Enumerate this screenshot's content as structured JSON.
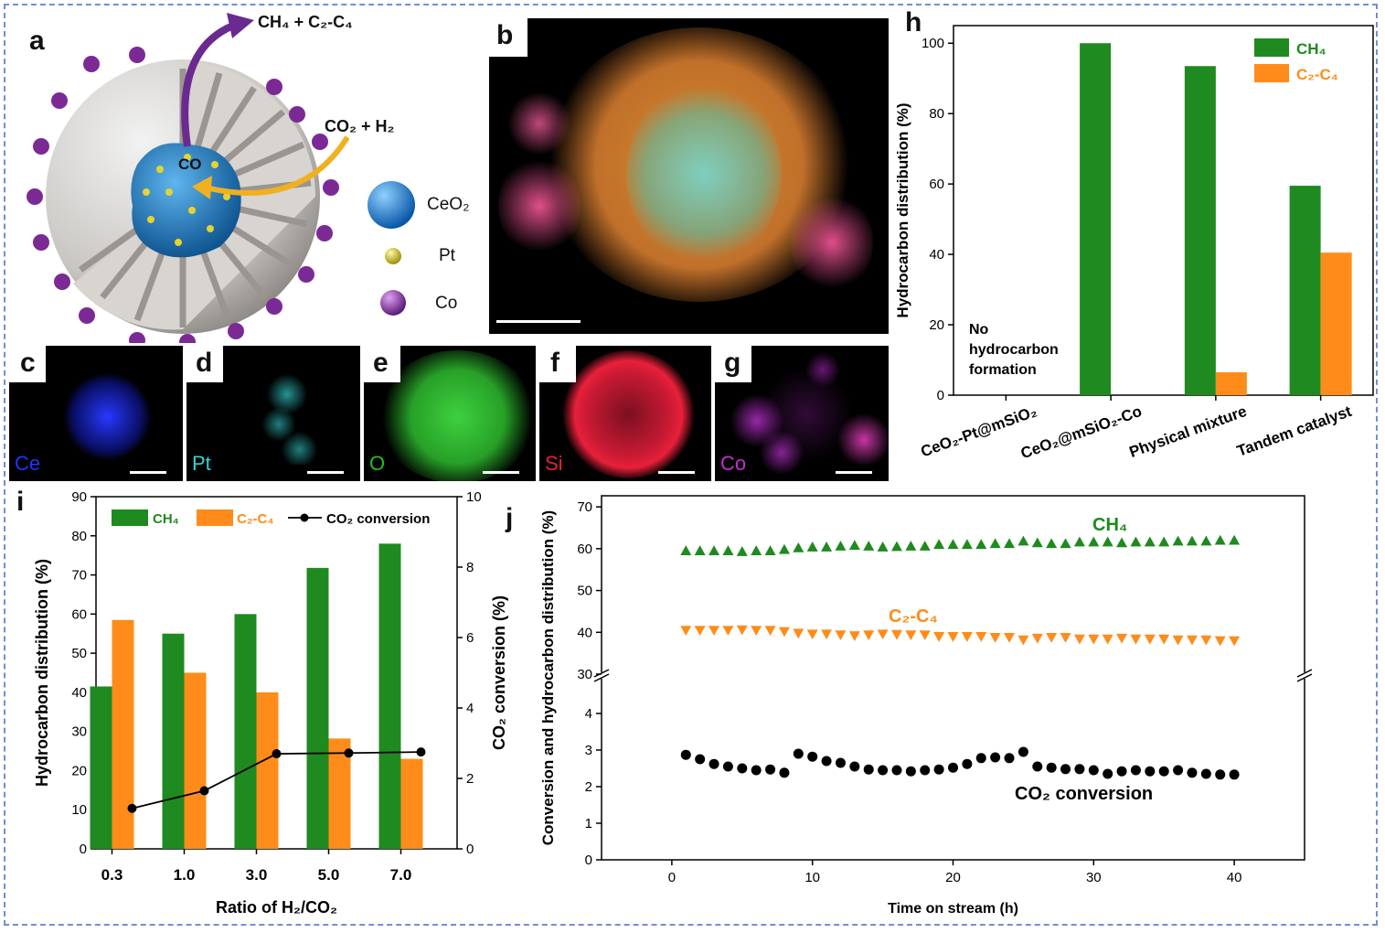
{
  "panels": {
    "a": "a",
    "b": "b",
    "c": "c",
    "d": "d",
    "e": "e",
    "f": "f",
    "g": "g",
    "h": "h",
    "i": "i",
    "j": "j"
  },
  "schematic": {
    "product_label": "CH₄ + C₂-C₄",
    "reactant_label": "CO₂ + H₂",
    "intermediate_label": "CO",
    "legend": [
      {
        "label": "CeO₂",
        "color": "#1f78c8"
      },
      {
        "label": "Pt",
        "color": "#d8c628"
      },
      {
        "label": "Co",
        "color": "#8a3aa0"
      }
    ]
  },
  "eds_maps": [
    {
      "panel": "c",
      "element": "Ce",
      "color": "#2233ff"
    },
    {
      "panel": "d",
      "element": "Pt",
      "color": "#37d2d2"
    },
    {
      "panel": "e",
      "element": "O",
      "color": "#22c022"
    },
    {
      "panel": "f",
      "element": "Si",
      "color": "#e8203a"
    },
    {
      "panel": "g",
      "element": "Co",
      "color": "#c030d0"
    }
  ],
  "colors": {
    "ch4": "#1f8a1f",
    "c2c4": "#ff8c1a",
    "conv": "#000000"
  },
  "chart_data": [
    {
      "id": "h",
      "type": "bar",
      "ylabel": "Hydrocarbon distribution (%)",
      "ylim": [
        0,
        105
      ],
      "yticks": [
        0,
        20,
        40,
        60,
        80,
        100
      ],
      "categories": [
        "CeO₂-Pt@mSiO₂",
        "CeO₂@mSiO₂-Co",
        "Physical mixture",
        "Tandem catalyst"
      ],
      "series": [
        {
          "name": "CH₄",
          "values": [
            0,
            100,
            93.5,
            59.5
          ]
        },
        {
          "name": "C₂-C₄",
          "values": [
            0,
            0,
            6.5,
            40.5
          ]
        }
      ],
      "annotation": [
        "No",
        "hydrocarbon",
        "formation"
      ],
      "legend_position": "top-right"
    },
    {
      "id": "i",
      "type": "bar",
      "xlabel": "Ratio of H₂/CO₂",
      "ylabel": "Hydrocarbon distribution (%)",
      "y2label": "CO₂ conversion (%)",
      "ylim": [
        0,
        90
      ],
      "yticks": [
        0,
        10,
        20,
        30,
        40,
        50,
        60,
        70,
        80,
        90
      ],
      "y2lim": [
        0,
        10
      ],
      "y2ticks": [
        0,
        2,
        4,
        6,
        8,
        10
      ],
      "categories": [
        "0.3",
        "1.0",
        "3.0",
        "5.0",
        "7.0"
      ],
      "series": [
        {
          "name": "CH₄",
          "values": [
            41.5,
            55,
            60,
            71.8,
            78
          ]
        },
        {
          "name": "C₂-C₄",
          "values": [
            58.5,
            45,
            40,
            28.2,
            23
          ]
        },
        {
          "name": "CO₂ conversion",
          "type": "line",
          "axis": "right",
          "x": [
            0.5,
            1.5,
            2.5,
            3.5,
            4.5
          ],
          "values": [
            1.15,
            1.65,
            2.7,
            2.72,
            2.75
          ]
        }
      ],
      "legend_position": "top"
    },
    {
      "id": "j",
      "type": "scatter",
      "xlabel": "Time on stream (h)",
      "ylabel": "Conversion and hydrocarbon distribution (%)",
      "xlim": [
        -5,
        45
      ],
      "xticks": [
        0,
        10,
        20,
        30,
        40
      ],
      "ylim_lower": [
        0,
        5
      ],
      "yticks_lower": [
        0,
        1,
        2,
        3,
        4
      ],
      "ylim_upper": [
        30,
        72
      ],
      "yticks_upper": [
        30,
        40,
        50,
        60,
        70
      ],
      "axis_break": true,
      "x": [
        1,
        2,
        3,
        4,
        5,
        6,
        7,
        8,
        9,
        10,
        11,
        12,
        13,
        14,
        15,
        16,
        17,
        18,
        19,
        20,
        21,
        22,
        23,
        24,
        25,
        26,
        27,
        28,
        29,
        30,
        31,
        32,
        33,
        34,
        35,
        36,
        37,
        38,
        39,
        40
      ],
      "series": [
        {
          "name": "CH₄",
          "marker": "triangle-up",
          "values": [
            59.5,
            59.5,
            59.5,
            59.5,
            59.3,
            59.5,
            59.5,
            59.8,
            60.2,
            60.4,
            60.4,
            60.6,
            60.8,
            60.6,
            60.4,
            60.5,
            60.6,
            60.6,
            61,
            61,
            61,
            61,
            61.2,
            61.2,
            61.8,
            61.4,
            61.2,
            61.2,
            61.6,
            61.6,
            61.6,
            61.4,
            61.6,
            61.6,
            61.6,
            61.8,
            61.8,
            61.8,
            62,
            62
          ]
        },
        {
          "name": "C₂-C₄",
          "marker": "triangle-down",
          "values": [
            40.5,
            40.5,
            40.5,
            40.5,
            40.6,
            40.5,
            40.5,
            40.2,
            39.8,
            39.6,
            39.6,
            39.4,
            39.2,
            39.4,
            39.6,
            39.5,
            39.4,
            39.4,
            39,
            39,
            39,
            39,
            38.8,
            38.8,
            38.2,
            38.6,
            38.8,
            38.8,
            38.4,
            38.4,
            38.4,
            38.6,
            38.4,
            38.4,
            38.4,
            38.2,
            38.2,
            38.2,
            38,
            38
          ]
        },
        {
          "name": "CO₂ conversion",
          "marker": "circle",
          "values": [
            2.87,
            2.75,
            2.62,
            2.55,
            2.5,
            2.45,
            2.47,
            2.38,
            2.9,
            2.82,
            2.7,
            2.65,
            2.55,
            2.47,
            2.45,
            2.45,
            2.42,
            2.45,
            2.47,
            2.52,
            2.62,
            2.78,
            2.8,
            2.78,
            2.95,
            2.55,
            2.52,
            2.48,
            2.48,
            2.45,
            2.35,
            2.42,
            2.45,
            2.42,
            2.42,
            2.45,
            2.38,
            2.35,
            2.33,
            2.33
          ]
        }
      ],
      "labels": {
        "ch4": "CH₄",
        "c2c4": "C₂-C₄",
        "conv": "CO₂ conversion"
      }
    }
  ]
}
